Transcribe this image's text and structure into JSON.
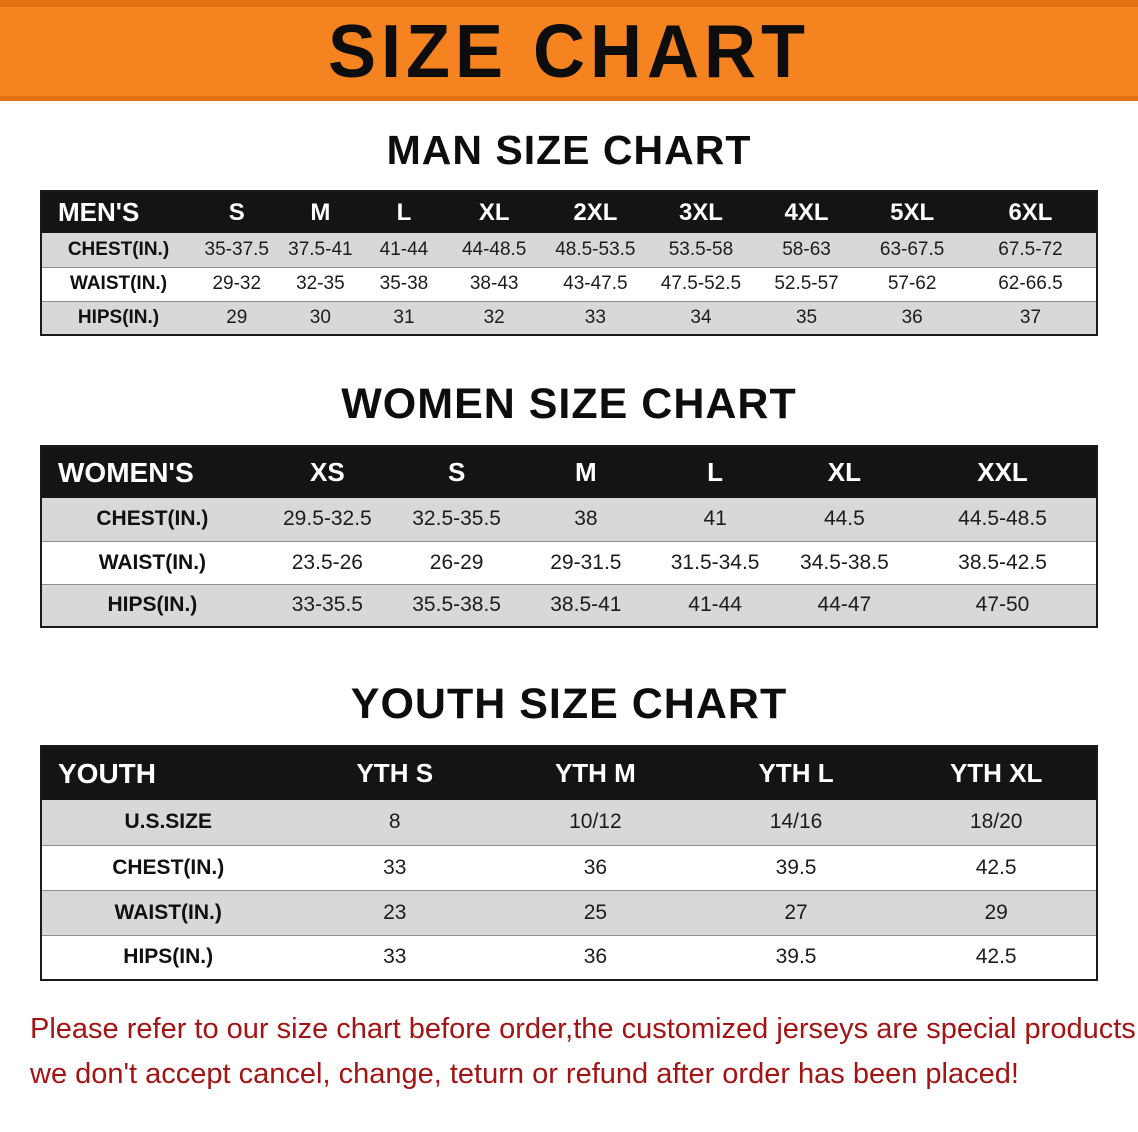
{
  "banner": {
    "title": "SIZE CHART"
  },
  "headings": {
    "men": "MAN SIZE CHART",
    "women": "WOMEN SIZE CHART",
    "youth": "YOUTH SIZE CHART"
  },
  "tables": {
    "men": {
      "header": [
        "MEN'S",
        "S",
        "M",
        "L",
        "XL",
        "2XL",
        "3XL",
        "4XL",
        "5XL",
        "6XL"
      ],
      "rows": [
        {
          "label": "CHEST(IN.)",
          "values": [
            "35-37.5",
            "37.5-41",
            "41-44",
            "44-48.5",
            "48.5-53.5",
            "53.5-58",
            "58-63",
            "63-67.5",
            "67.5-72"
          ]
        },
        {
          "label": "WAIST(IN.)",
          "values": [
            "29-32",
            "32-35",
            "35-38",
            "38-43",
            "43-47.5",
            "47.5-52.5",
            "52.5-57",
            "57-62",
            "62-66.5"
          ]
        },
        {
          "label": "HIPS(IN.)",
          "values": [
            "29",
            "30",
            "31",
            "32",
            "33",
            "34",
            "35",
            "36",
            "37"
          ]
        }
      ]
    },
    "women": {
      "header": [
        "WOMEN'S",
        "XS",
        "S",
        "M",
        "L",
        "XL",
        "XXL"
      ],
      "rows": [
        {
          "label": "CHEST(IN.)",
          "values": [
            "29.5-32.5",
            "32.5-35.5",
            "38",
            "41",
            "44.5",
            "44.5-48.5"
          ]
        },
        {
          "label": "WAIST(IN.)",
          "values": [
            "23.5-26",
            "26-29",
            "29-31.5",
            "31.5-34.5",
            "34.5-38.5",
            "38.5-42.5"
          ]
        },
        {
          "label": "HIPS(IN.)",
          "values": [
            "33-35.5",
            "35.5-38.5",
            "38.5-41",
            "41-44",
            "44-47",
            "47-50"
          ]
        }
      ]
    },
    "youth": {
      "header": [
        "YOUTH",
        "YTH S",
        "YTH M",
        "YTH L",
        "YTH XL"
      ],
      "rows": [
        {
          "label": "U.S.SIZE",
          "values": [
            "8",
            "10/12",
            "14/16",
            "18/20"
          ]
        },
        {
          "label": "CHEST(IN.)",
          "values": [
            "33",
            "36",
            "39.5",
            "42.5"
          ]
        },
        {
          "label": "WAIST(IN.)",
          "values": [
            "23",
            "25",
            "27",
            "29"
          ]
        },
        {
          "label": "HIPS(IN.)",
          "values": [
            "33",
            "36",
            "39.5",
            "42.5"
          ]
        }
      ]
    }
  },
  "footer": {
    "line1": "Please refer to our size chart before order,the customized jerseys are special products,",
    "line2": "we don't accept cancel, change, teturn or refund after order has been placed!"
  },
  "colors": {
    "banner_orange": "#f5831f",
    "banner_border_orange": "#e2720f",
    "table_header_black": "#141414",
    "row_gray": "#d8d8d8",
    "footer_red": "#a31414"
  }
}
